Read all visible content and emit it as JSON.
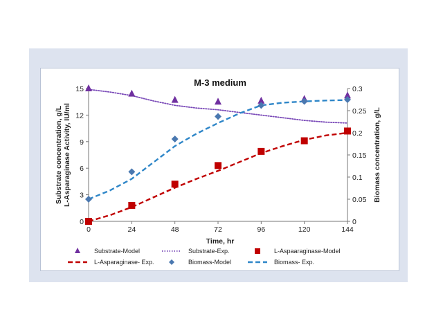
{
  "chart_data": {
    "type": "scatter",
    "title": "M-3 medium",
    "xlabel": "Time, hr",
    "ylabel_left": [
      "Substrate concentration, g/L",
      "L-Asparaginase Activity, IU/ml"
    ],
    "ylabel_right": "Biomass concentration, g/L",
    "x_ticks": [
      0,
      24,
      48,
      72,
      96,
      120,
      144
    ],
    "y_left_ticks": [
      0,
      3,
      6,
      9,
      12,
      15
    ],
    "y_right_ticks": [
      0,
      0.05,
      0.1,
      0.15,
      0.2,
      0.25,
      0.3
    ],
    "xlim": [
      0,
      144
    ],
    "ylim_left": [
      0,
      15
    ],
    "ylim_right": [
      0,
      0.3
    ],
    "grid": false,
    "legend_position": "bottom",
    "series": [
      {
        "name": "Substrate-Model",
        "kind": "markers",
        "marker": "triangle",
        "color": "#7030a0",
        "axis": "left",
        "x": [
          0,
          24,
          48,
          72,
          96,
          120,
          144
        ],
        "y": [
          15.0,
          14.4,
          13.7,
          13.5,
          13.6,
          13.8,
          14.2
        ]
      },
      {
        "name": "Substrate-Exp.",
        "kind": "line",
        "dash": "dotted",
        "color": "#7a4ab8",
        "axis": "left",
        "x": [
          0,
          12,
          24,
          36,
          48,
          60,
          72,
          84,
          96,
          108,
          120,
          132,
          144
        ],
        "y": [
          14.9,
          14.6,
          14.2,
          13.6,
          13.1,
          12.8,
          12.6,
          12.3,
          12.0,
          11.7,
          11.4,
          11.2,
          11.1
        ]
      },
      {
        "name": "L-Aspaaraginase-Model",
        "kind": "markers",
        "marker": "square",
        "color": "#c00000",
        "axis": "left",
        "x": [
          0,
          24,
          48,
          72,
          96,
          120,
          144
        ],
        "y": [
          0.0,
          1.8,
          4.2,
          6.3,
          7.9,
          9.1,
          10.2
        ]
      },
      {
        "name": "L-Asparaginase- Exp.",
        "kind": "line",
        "dash": "dashed",
        "color": "#c00000",
        "axis": "left",
        "x": [
          0,
          12,
          24,
          36,
          48,
          60,
          72,
          84,
          96,
          108,
          120,
          132,
          144
        ],
        "y": [
          0.0,
          0.7,
          1.6,
          2.7,
          3.8,
          4.8,
          5.7,
          6.7,
          7.7,
          8.5,
          9.2,
          9.7,
          10.0
        ]
      },
      {
        "name": "Biomass-Model",
        "kind": "markers",
        "marker": "diamond",
        "color": "#4a78b0",
        "axis": "right",
        "x": [
          0,
          24,
          48,
          72,
          96,
          120,
          144
        ],
        "y": [
          0.05,
          0.112,
          0.186,
          0.237,
          0.262,
          0.271,
          0.275
        ]
      },
      {
        "name": "Biomass- Exp.",
        "kind": "line",
        "dash": "dashed",
        "color": "#2e86c8",
        "axis": "right",
        "x": [
          0,
          12,
          24,
          36,
          48,
          60,
          72,
          84,
          96,
          108,
          120,
          132,
          144
        ],
        "y": [
          0.05,
          0.07,
          0.096,
          0.133,
          0.17,
          0.198,
          0.222,
          0.244,
          0.262,
          0.268,
          0.271,
          0.273,
          0.274
        ]
      }
    ]
  }
}
